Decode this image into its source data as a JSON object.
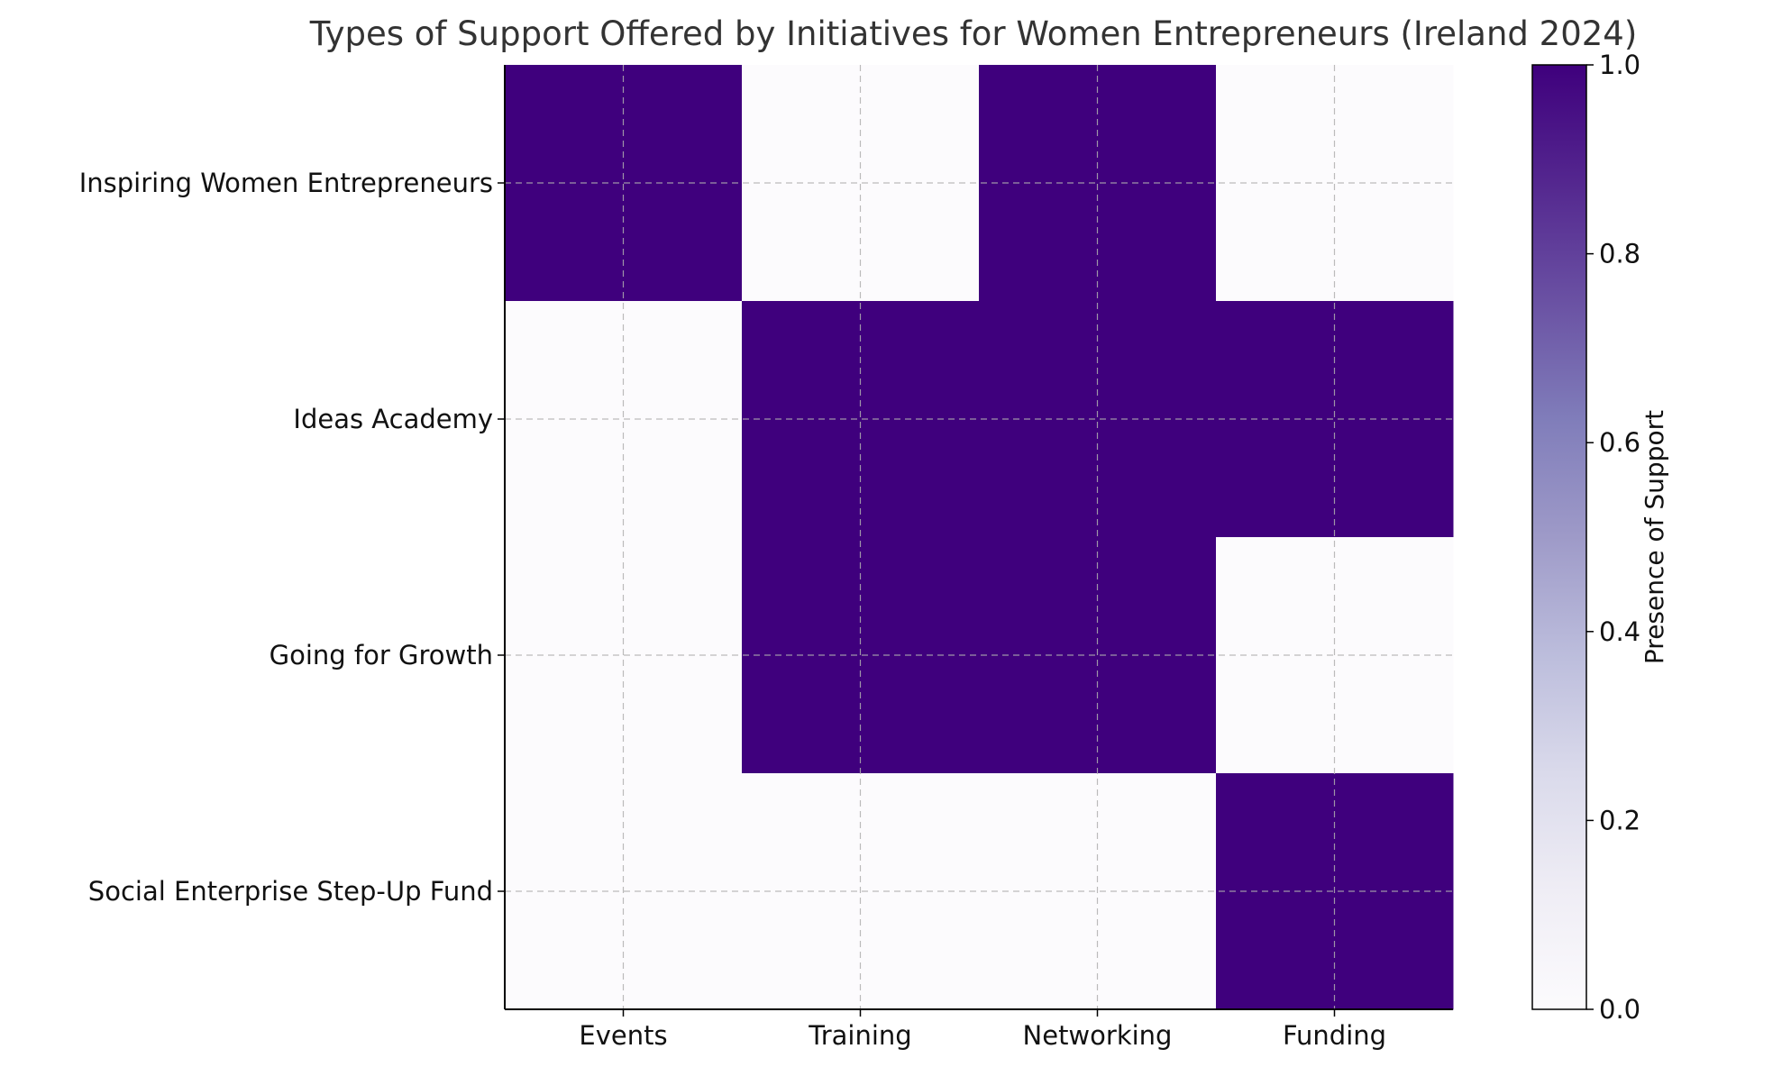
{
  "chart_data": {
    "type": "heatmap",
    "title": "Types of Support Offered by Initiatives for Women Entrepreneurs (Ireland 2024)",
    "xlabel": "",
    "ylabel": "",
    "x_categories": [
      "Events",
      "Training",
      "Networking",
      "Funding"
    ],
    "y_categories": [
      "Inspiring Women Entrepreneurs",
      "Ideas Academy",
      "Going for Growth",
      "Social Enterprise Step-Up Fund"
    ],
    "values": [
      [
        1,
        0,
        1,
        0
      ],
      [
        0,
        1,
        1,
        1
      ],
      [
        0,
        1,
        1,
        0
      ],
      [
        0,
        0,
        0,
        1
      ]
    ],
    "grid": true,
    "colormap": "Purples",
    "colors": {
      "low": "#fcfbfd",
      "high": "#3f007d"
    },
    "colorbar": {
      "label": "Presence of Support",
      "range": [
        0.0,
        1.0
      ],
      "ticks": [
        "0.0",
        "0.2",
        "0.4",
        "0.6",
        "0.8",
        "1.0"
      ],
      "tick_values": [
        0,
        0.2,
        0.4,
        0.6,
        0.8,
        1.0
      ]
    }
  }
}
